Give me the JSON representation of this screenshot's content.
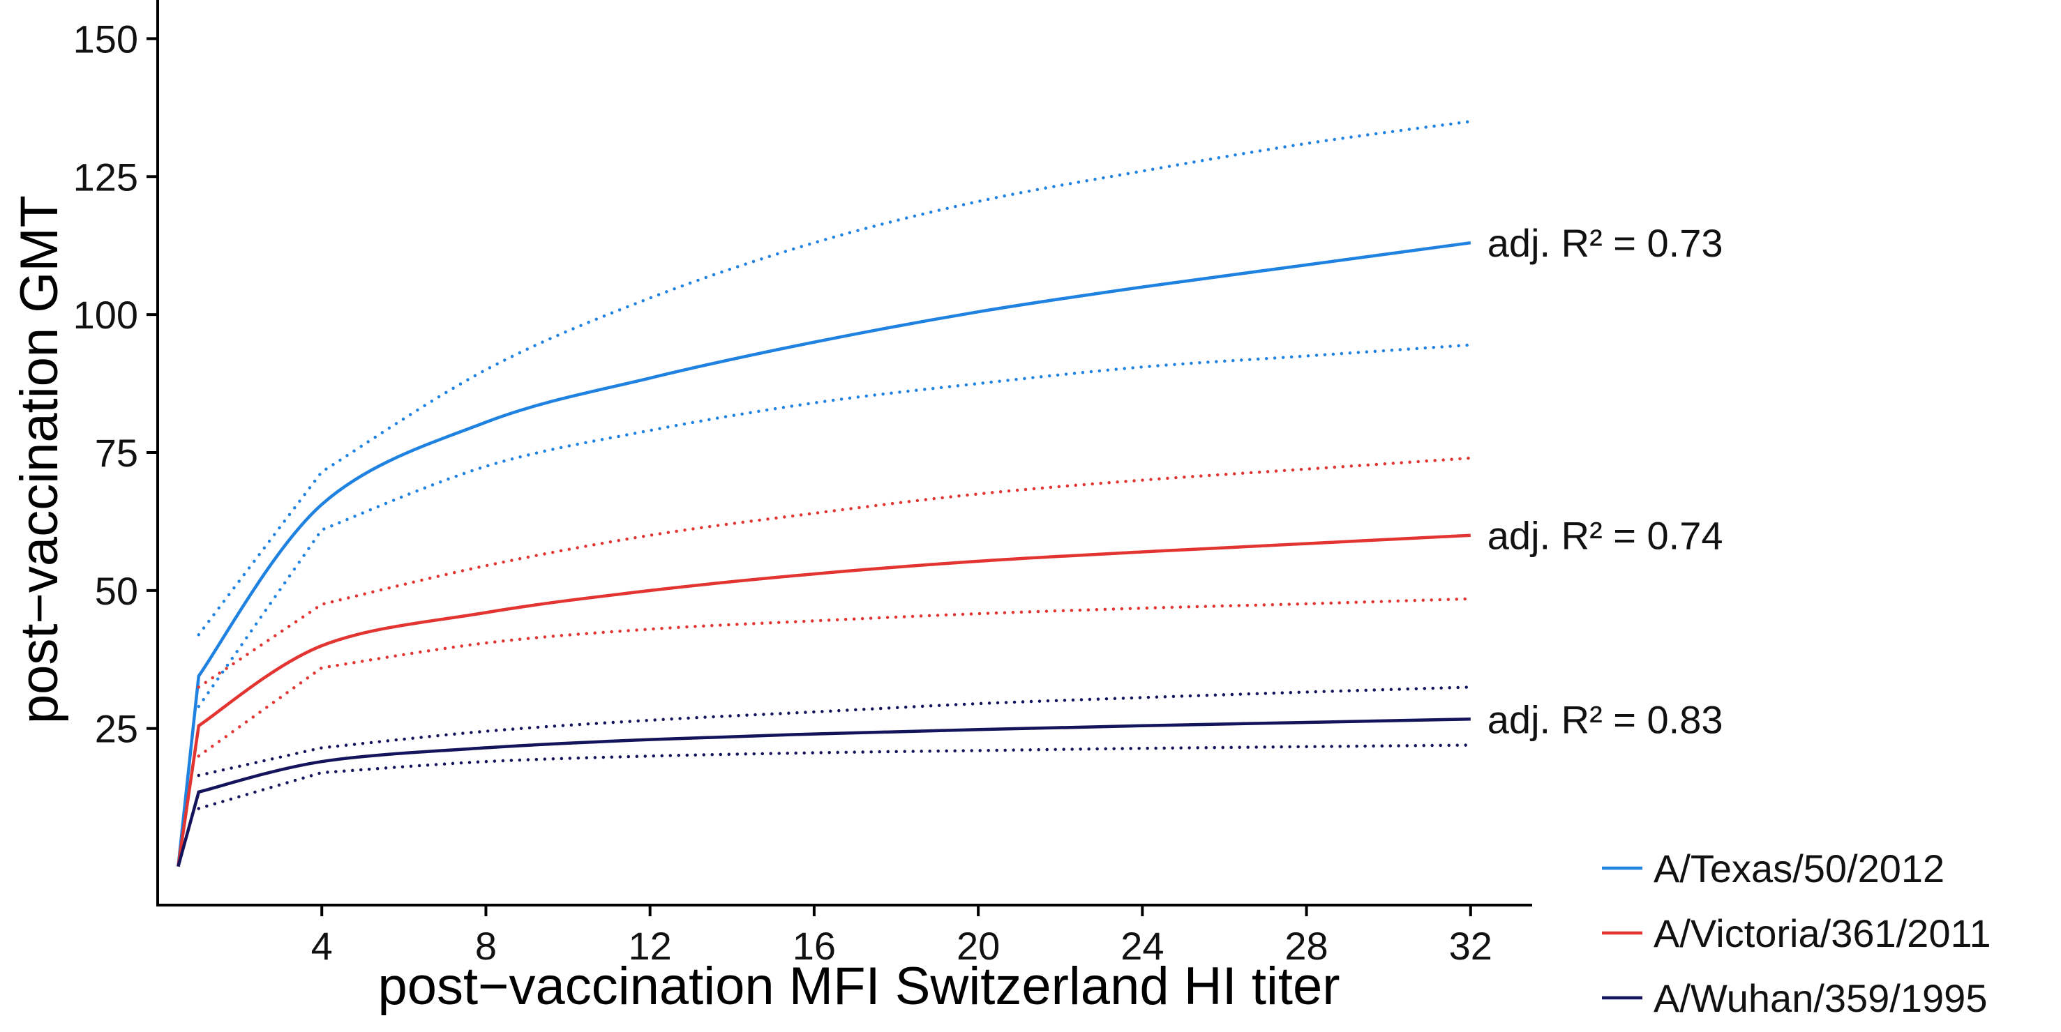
{
  "chart_data": {
    "type": "line",
    "xlabel": "post−vaccination MFI Switzerland HI titer",
    "ylabel": "post−vaccination GMT",
    "xlim": [
      0,
      33.5
    ],
    "ylim": [
      -7,
      157
    ],
    "x_ticks": [
      4,
      8,
      12,
      16,
      20,
      24,
      28,
      32
    ],
    "y_ticks": [
      25,
      50,
      75,
      100,
      125,
      150
    ],
    "grid": false,
    "legend": "bottom-right, outside plot",
    "series": [
      {
        "name": "A/Texas/50/2012",
        "color": "#1f82e0",
        "fit": [
          [
            0.5,
            0
          ],
          [
            1,
            34.5
          ],
          [
            4,
            65.6
          ],
          [
            8,
            80.5
          ],
          [
            12,
            88.5
          ],
          [
            16,
            95
          ],
          [
            20,
            100.5
          ],
          [
            24,
            105
          ],
          [
            28,
            109
          ],
          [
            32,
            113
          ]
        ],
        "upper": [
          [
            1,
            42
          ],
          [
            4,
            71.5
          ],
          [
            8,
            90
          ],
          [
            12,
            103
          ],
          [
            16,
            113
          ],
          [
            20,
            120.5
          ],
          [
            24,
            126
          ],
          [
            28,
            131
          ],
          [
            32,
            135
          ]
        ],
        "lower": [
          [
            1,
            29
          ],
          [
            4,
            61
          ],
          [
            8,
            72.5
          ],
          [
            12,
            79
          ],
          [
            16,
            84
          ],
          [
            20,
            87.5
          ],
          [
            24,
            90.5
          ],
          [
            28,
            92.5
          ],
          [
            32,
            94.5
          ]
        ],
        "annotation": "adj. R² = 0.73"
      },
      {
        "name": "A/Victoria/361/2011",
        "color": "#e23532",
        "fit": [
          [
            0.5,
            0
          ],
          [
            1,
            25.5
          ],
          [
            4,
            40
          ],
          [
            8,
            46
          ],
          [
            12,
            50
          ],
          [
            16,
            53
          ],
          [
            20,
            55.3
          ],
          [
            24,
            57
          ],
          [
            28,
            58.5
          ],
          [
            32,
            60
          ]
        ],
        "upper": [
          [
            1,
            32.5
          ],
          [
            4,
            47.5
          ],
          [
            8,
            54.5
          ],
          [
            12,
            60
          ],
          [
            16,
            64
          ],
          [
            20,
            67.5
          ],
          [
            24,
            70
          ],
          [
            28,
            72
          ],
          [
            32,
            74
          ]
        ],
        "lower": [
          [
            1,
            20
          ],
          [
            4,
            36
          ],
          [
            8,
            40.5
          ],
          [
            12,
            43
          ],
          [
            16,
            44.5
          ],
          [
            20,
            45.8
          ],
          [
            24,
            46.8
          ],
          [
            28,
            47.6
          ],
          [
            32,
            48.5
          ]
        ],
        "annotation": "adj. R² = 0.74"
      },
      {
        "name": "A/Wuhan/359/1995",
        "color": "#14145c",
        "fit": [
          [
            0.5,
            0
          ],
          [
            1,
            13.5
          ],
          [
            4,
            19
          ],
          [
            8,
            21.5
          ],
          [
            12,
            23
          ],
          [
            16,
            24
          ],
          [
            20,
            24.8
          ],
          [
            24,
            25.5
          ],
          [
            28,
            26.1
          ],
          [
            32,
            26.7
          ]
        ],
        "upper": [
          [
            1,
            16.5
          ],
          [
            4,
            21.5
          ],
          [
            8,
            24.5
          ],
          [
            12,
            26.5
          ],
          [
            16,
            28
          ],
          [
            20,
            29.5
          ],
          [
            24,
            30.6
          ],
          [
            28,
            31.6
          ],
          [
            32,
            32.5
          ]
        ],
        "lower": [
          [
            1,
            10.5
          ],
          [
            4,
            17
          ],
          [
            8,
            19
          ],
          [
            12,
            20
          ],
          [
            16,
            20.6
          ],
          [
            20,
            21
          ],
          [
            24,
            21.4
          ],
          [
            28,
            21.7
          ],
          [
            32,
            22
          ]
        ],
        "annotation": "adj. R² = 0.83"
      }
    ]
  }
}
